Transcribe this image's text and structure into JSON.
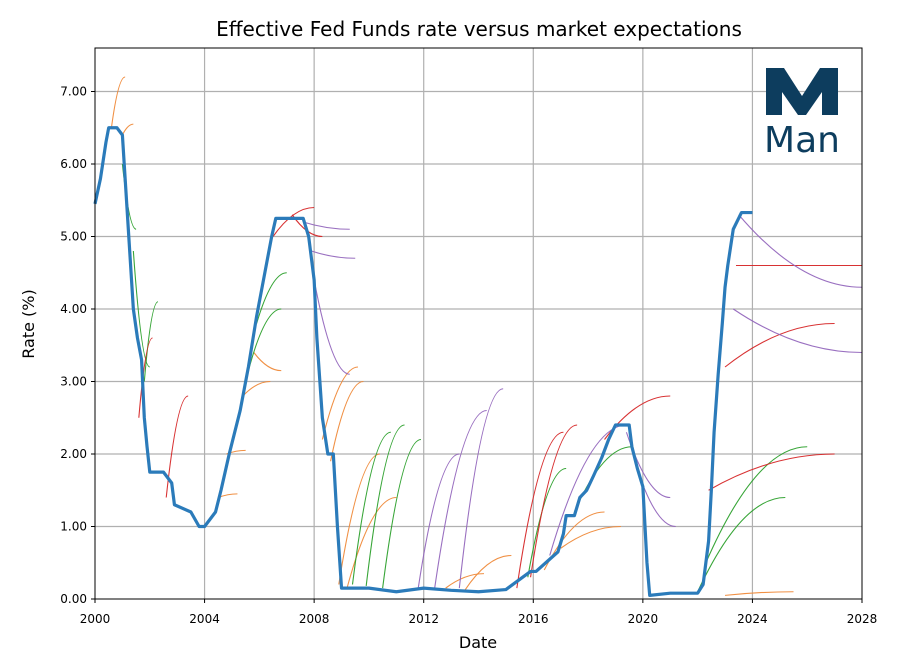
{
  "chart_data": {
    "type": "line",
    "title": "Effective Fed Funds rate versus market expectations",
    "xlabel": "Date",
    "ylabel": "Rate (%)",
    "xlim": [
      2000,
      2028
    ],
    "ylim": [
      0,
      7.6
    ],
    "grid": true,
    "x_ticks": [
      2000,
      2004,
      2008,
      2012,
      2016,
      2020,
      2024,
      2028
    ],
    "x_tick_labels": [
      "2000",
      "2004",
      "2008",
      "2012",
      "2016",
      "2020",
      "2024",
      "2028"
    ],
    "y_ticks": [
      0,
      1,
      2,
      3,
      4,
      5,
      6,
      7
    ],
    "y_tick_labels": [
      "0.00",
      "1.00",
      "2.00",
      "3.00",
      "4.00",
      "5.00",
      "6.00",
      "7.00"
    ],
    "colors": {
      "effective_rate": "#2b7bba",
      "orange": "#ef8a3a",
      "green": "#2ca02c",
      "red": "#d62728",
      "purple": "#9467bd",
      "grid": "#b0b0b0",
      "logo": "#0d3d5e"
    },
    "effective_rate": {
      "name": "Effective Fed Funds rate",
      "x": [
        2000.0,
        2000.2,
        2000.4,
        2000.5,
        2000.8,
        2001.0,
        2001.1,
        2001.25,
        2001.4,
        2001.55,
        2001.7,
        2001.8,
        2001.9,
        2002.0,
        2002.5,
        2002.8,
        2002.9,
        2003.5,
        2003.8,
        2004.0,
        2004.4,
        2004.6,
        2004.9,
        2005.3,
        2005.6,
        2005.9,
        2006.2,
        2006.45,
        2006.6,
        2007.0,
        2007.6,
        2007.8,
        2008.0,
        2008.1,
        2008.3,
        2008.5,
        2008.7,
        2008.85,
        2009.0,
        2010.0,
        2011.0,
        2012.0,
        2013.0,
        2014.0,
        2015.0,
        2015.9,
        2016.1,
        2016.9,
        2017.1,
        2017.2,
        2017.5,
        2017.7,
        2017.95,
        2018.2,
        2018.5,
        2018.75,
        2019.0,
        2019.5,
        2019.6,
        2019.8,
        2020.0,
        2020.15,
        2020.25,
        2021.0,
        2022.0,
        2022.2,
        2022.4,
        2022.5,
        2022.6,
        2022.75,
        2022.9,
        2023.0,
        2023.1,
        2023.3,
        2023.6,
        2024.0
      ],
      "y": [
        5.45,
        5.8,
        6.3,
        6.5,
        6.5,
        6.4,
        5.8,
        4.9,
        4.0,
        3.6,
        3.3,
        2.5,
        2.1,
        1.75,
        1.75,
        1.6,
        1.3,
        1.2,
        1.0,
        1.0,
        1.2,
        1.5,
        2.0,
        2.6,
        3.2,
        3.9,
        4.5,
        5.0,
        5.25,
        5.25,
        5.25,
        5.0,
        4.4,
        3.6,
        2.5,
        2.0,
        2.0,
        1.0,
        0.15,
        0.15,
        0.1,
        0.15,
        0.12,
        0.1,
        0.13,
        0.38,
        0.38,
        0.65,
        0.9,
        1.15,
        1.15,
        1.4,
        1.5,
        1.7,
        1.95,
        2.2,
        2.4,
        2.4,
        2.1,
        1.8,
        1.55,
        0.5,
        0.05,
        0.08,
        0.08,
        0.2,
        0.8,
        1.5,
        2.3,
        3.1,
        3.8,
        4.3,
        4.6,
        5.1,
        5.33,
        5.33
      ]
    },
    "expectation_groups": [
      {
        "color": "orange",
        "curves": [
          {
            "x0": 2000.6,
            "y0": 6.5,
            "x1": 2001.1,
            "y1": 7.2
          },
          {
            "x0": 2001.0,
            "y0": 6.4,
            "x1": 2001.4,
            "y1": 6.55
          },
          {
            "x0": 2004.5,
            "y0": 1.4,
            "x1": 2005.2,
            "y1": 1.45
          },
          {
            "x0": 2004.8,
            "y0": 2.0,
            "x1": 2005.5,
            "y1": 2.05
          },
          {
            "x0": 2005.4,
            "y0": 2.8,
            "x1": 2006.4,
            "y1": 3.0
          },
          {
            "x0": 2005.8,
            "y0": 3.4,
            "x1": 2006.8,
            "y1": 3.15
          },
          {
            "x0": 2008.3,
            "y0": 2.2,
            "x1": 2009.6,
            "y1": 3.2
          },
          {
            "x0": 2008.6,
            "y0": 1.9,
            "x1": 2009.8,
            "y1": 3.0
          },
          {
            "x0": 2008.9,
            "y0": 0.2,
            "x1": 2010.4,
            "y1": 2.0
          },
          {
            "x0": 2009.2,
            "y0": 0.15,
            "x1": 2011.0,
            "y1": 1.4
          },
          {
            "x0": 2012.8,
            "y0": 0.15,
            "x1": 2014.2,
            "y1": 0.35
          },
          {
            "x0": 2013.5,
            "y0": 0.12,
            "x1": 2015.2,
            "y1": 0.6
          },
          {
            "x0": 2016.4,
            "y0": 0.4,
            "x1": 2018.6,
            "y1": 1.2
          },
          {
            "x0": 2017.0,
            "y0": 0.7,
            "x1": 2019.2,
            "y1": 1.0
          },
          {
            "x0": 2023.0,
            "y0": 0.05,
            "x1": 2025.5,
            "y1": 0.1
          }
        ]
      },
      {
        "color": "green",
        "curves": [
          {
            "x0": 2001.0,
            "y0": 6.0,
            "x1": 2001.5,
            "y1": 5.1
          },
          {
            "x0": 2001.4,
            "y0": 4.8,
            "x1": 2002.0,
            "y1": 3.2
          },
          {
            "x0": 2001.8,
            "y0": 3.0,
            "x1": 2002.3,
            "y1": 4.1
          },
          {
            "x0": 2005.5,
            "y0": 3.0,
            "x1": 2006.8,
            "y1": 4.0
          },
          {
            "x0": 2005.9,
            "y0": 3.8,
            "x1": 2007.0,
            "y1": 4.5
          },
          {
            "x0": 2009.4,
            "y0": 0.2,
            "x1": 2010.8,
            "y1": 2.3
          },
          {
            "x0": 2009.9,
            "y0": 0.18,
            "x1": 2011.3,
            "y1": 2.4
          },
          {
            "x0": 2010.5,
            "y0": 0.15,
            "x1": 2011.9,
            "y1": 2.2
          },
          {
            "x0": 2015.8,
            "y0": 0.3,
            "x1": 2017.2,
            "y1": 1.8
          },
          {
            "x0": 2017.5,
            "y0": 1.2,
            "x1": 2019.6,
            "y1": 2.1
          },
          {
            "x0": 2022.0,
            "y0": 0.1,
            "x1": 2025.2,
            "y1": 1.4
          },
          {
            "x0": 2022.3,
            "y0": 0.5,
            "x1": 2026.0,
            "y1": 2.1
          }
        ]
      },
      {
        "color": "red",
        "curves": [
          {
            "x0": 2001.6,
            "y0": 2.5,
            "x1": 2002.1,
            "y1": 3.6
          },
          {
            "x0": 2002.6,
            "y0": 1.4,
            "x1": 2003.4,
            "y1": 2.8
          },
          {
            "x0": 2006.5,
            "y0": 5.0,
            "x1": 2008.0,
            "y1": 5.4
          },
          {
            "x0": 2007.2,
            "y0": 5.3,
            "x1": 2008.3,
            "y1": 5.0
          },
          {
            "x0": 2015.4,
            "y0": 0.15,
            "x1": 2017.1,
            "y1": 2.3
          },
          {
            "x0": 2015.9,
            "y0": 0.3,
            "x1": 2017.6,
            "y1": 2.4
          },
          {
            "x0": 2018.6,
            "y0": 2.2,
            "x1": 2021.0,
            "y1": 2.8
          },
          {
            "x0": 2022.4,
            "y0": 1.5,
            "x1": 2027.0,
            "y1": 2.0
          },
          {
            "x0": 2023.0,
            "y0": 3.2,
            "x1": 2027.0,
            "y1": 3.8
          },
          {
            "x0": 2023.4,
            "y0": 4.6,
            "x1": 2028.0,
            "y1": 4.6
          }
        ]
      },
      {
        "color": "purple",
        "curves": [
          {
            "x0": 2007.6,
            "y0": 5.2,
            "x1": 2009.3,
            "y1": 5.1
          },
          {
            "x0": 2007.9,
            "y0": 4.8,
            "x1": 2009.5,
            "y1": 4.7
          },
          {
            "x0": 2008.0,
            "y0": 4.4,
            "x1": 2009.3,
            "y1": 3.1
          },
          {
            "x0": 2011.8,
            "y0": 0.15,
            "x1": 2013.3,
            "y1": 2.0
          },
          {
            "x0": 2012.4,
            "y0": 0.15,
            "x1": 2014.3,
            "y1": 2.6
          },
          {
            "x0": 2013.3,
            "y0": 0.15,
            "x1": 2014.9,
            "y1": 2.9
          },
          {
            "x0": 2016.6,
            "y0": 0.6,
            "x1": 2019.4,
            "y1": 2.4
          },
          {
            "x0": 2019.4,
            "y0": 2.3,
            "x1": 2021.0,
            "y1": 1.4
          },
          {
            "x0": 2019.7,
            "y0": 1.9,
            "x1": 2021.2,
            "y1": 1.0
          },
          {
            "x0": 2023.3,
            "y0": 4.0,
            "x1": 2028.0,
            "y1": 3.4
          },
          {
            "x0": 2023.5,
            "y0": 5.3,
            "x1": 2028.0,
            "y1": 4.3
          }
        ]
      }
    ]
  },
  "logo": {
    "mark": "M",
    "text": "Man"
  }
}
